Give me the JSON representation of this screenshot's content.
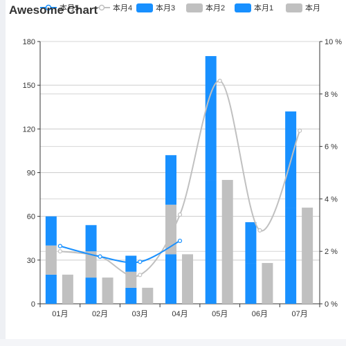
{
  "chart_data": {
    "type": "bar",
    "title": "Awesome Chart",
    "categories": [
      "01月",
      "02月",
      "03月",
      "04月",
      "05月",
      "06月",
      "07月"
    ],
    "stacked_bar_series": [
      {
        "name": "本月1",
        "values": [
          20,
          18,
          11,
          34,
          85,
          28,
          66
        ],
        "color": "#1890ff"
      },
      {
        "name": "本月2",
        "values": [
          20,
          18,
          11,
          34,
          0,
          0,
          0
        ],
        "color": "#c0c0c0"
      },
      {
        "name": "本月3",
        "values": [
          20,
          18,
          11,
          34,
          85,
          28,
          66
        ],
        "color": "#1890ff"
      }
    ],
    "bar_series": [
      {
        "name": "本月",
        "values": [
          20,
          18,
          11,
          34,
          85,
          28,
          66
        ],
        "color": "#c0c0c0"
      }
    ],
    "line_series": [
      {
        "name": "本月5",
        "values": [
          2.2,
          1.8,
          1.6,
          2.4,
          null,
          null,
          null
        ],
        "color": "#1890ff",
        "axis": "right",
        "smooth": true
      },
      {
        "name": "本月4",
        "values": [
          2.0,
          1.8,
          1.1,
          3.4,
          8.5,
          2.8,
          6.6
        ],
        "color": "#c0c0c0",
        "axis": "right",
        "smooth": true
      }
    ],
    "y_left": {
      "min": 0,
      "max": 180,
      "ticks": [
        "0",
        "30",
        "60",
        "90",
        "120",
        "150",
        "180"
      ]
    },
    "y_right": {
      "min": 0,
      "max": 10,
      "ticks": [
        "0 %",
        "2 %",
        "4 %",
        "6 %",
        "8 %",
        "10 %"
      ]
    },
    "grid": true,
    "legend": {
      "placement": "top",
      "items": [
        {
          "name": "本月5",
          "kind": "line",
          "color": "#1890ff"
        },
        {
          "name": "本月4",
          "kind": "line",
          "color": "#c0c0c0"
        },
        {
          "name": "本月3",
          "kind": "bar",
          "color": "#1890ff"
        },
        {
          "name": "本月2",
          "kind": "bar",
          "color": "#c0c0c0"
        },
        {
          "name": "本月1",
          "kind": "bar",
          "color": "#1890ff"
        },
        {
          "name": "本月",
          "kind": "bar",
          "color": "#c0c0c0"
        }
      ]
    }
  }
}
